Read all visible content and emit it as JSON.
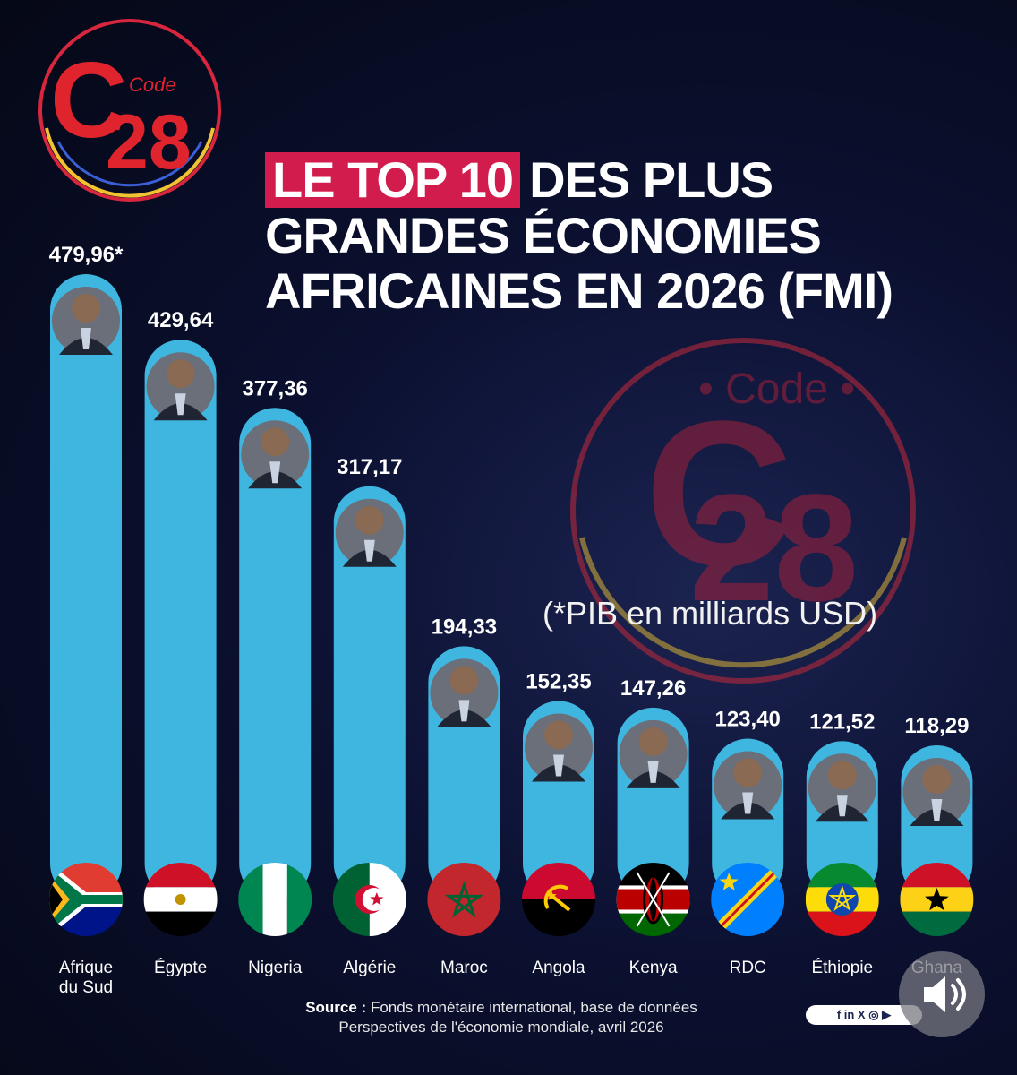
{
  "brand": {
    "logo_text": "Code",
    "logo_number": "28",
    "logo_letter": "C"
  },
  "title": {
    "highlight": "LE TOP 10",
    "line1_rest": "DES PLUS",
    "line2": "GRANDES ÉCONOMIES",
    "line3": "AFRICAINES EN 2026 (FMI)"
  },
  "unit_note": "(*PIB en milliards USD)",
  "source": {
    "label": "Source :",
    "line1": "Fonds monétaire international, base de données",
    "line2": "Perspectives de l'économie mondiale, avril 2026"
  },
  "social_icons": "f in X ◎ ▶",
  "colors": {
    "bar": "#3fb6df",
    "highlight": "#d21c4e",
    "background": "#0b1030"
  },
  "chart_data": {
    "type": "bar",
    "title": "LE TOP 10 DES PLUS GRANDES ÉCONOMIES AFRICAINES EN 2026 (FMI)",
    "ylabel": "PIB en milliards USD",
    "xlabel": "",
    "ylim": [
      0,
      480
    ],
    "categories": [
      "Afrique du Sud",
      "Égypte",
      "Nigeria",
      "Algérie",
      "Maroc",
      "Angola",
      "Kenya",
      "RDC",
      "Éthiopie",
      "Ghana"
    ],
    "values": [
      479.96,
      429.64,
      377.36,
      317.17,
      194.33,
      152.35,
      147.26,
      123.4,
      121.52,
      118.29
    ],
    "value_labels": [
      "479,96*",
      "429,64",
      "377,36",
      "317,17",
      "194,33",
      "152,35",
      "147,26",
      "123,40",
      "121,52",
      "118,29"
    ],
    "category_labels": [
      [
        "Afrique",
        "du Sud"
      ],
      [
        "Égypte"
      ],
      [
        "Nigeria"
      ],
      [
        "Algérie"
      ],
      [
        "Maroc"
      ],
      [
        "Angola"
      ],
      [
        "Kenya"
      ],
      [
        "RDC"
      ],
      [
        "Éthiopie"
      ],
      [
        "Ghana"
      ]
    ],
    "flags": [
      "south-africa",
      "egypt",
      "nigeria",
      "algeria",
      "morocco",
      "angola",
      "kenya",
      "drc",
      "ethiopia",
      "ghana"
    ]
  }
}
